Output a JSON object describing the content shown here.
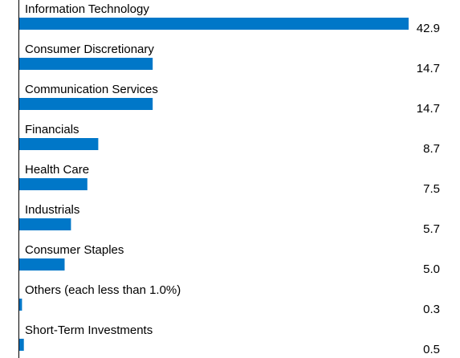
{
  "chart_data": {
    "type": "bar",
    "orientation": "horizontal",
    "categories": [
      "Information Technology",
      "Consumer Discretionary",
      "Communication Services",
      "Financials",
      "Health Care",
      "Industrials",
      "Consumer Staples",
      "Others (each less than 1.0%)",
      "Short-Term Investments"
    ],
    "values": [
      42.9,
      14.7,
      14.7,
      8.7,
      7.5,
      5.7,
      5.0,
      0.3,
      0.5
    ],
    "value_labels": [
      "42.9",
      "14.7",
      "14.7",
      "8.7",
      "7.5",
      "5.7",
      "5.0",
      "0.3",
      "0.5"
    ],
    "xlim": [
      0,
      42.9
    ],
    "grid": false,
    "legend": "none",
    "bar_color": "#0077c8"
  }
}
